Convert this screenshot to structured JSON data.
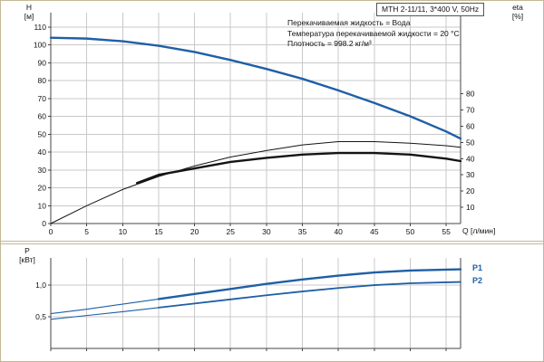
{
  "conditions": [
    "Перекачиваемая жидкость = Вода",
    "Температура перекачиваемой жидкости = 20 °C",
    "Плотность = 998.2 кг/м³"
  ],
  "colors": {
    "blue": "#1f5fa6",
    "black": "#141414",
    "grid": "#c9c9c9",
    "axis": "#444444",
    "frame": "#c3b795",
    "text": "#111111"
  },
  "chart_data": [
    {
      "type": "line",
      "title": "MTH 2-11/11, 3*400 V, 50Hz",
      "xlabel": "Q [л/мин]",
      "ylabel_left": [
        "H",
        "[м]"
      ],
      "ylabel_right": [
        "eta",
        "[%]"
      ],
      "xlim": [
        0,
        57
      ],
      "ylim": [
        0,
        118
      ],
      "ylim_right": [
        0,
        130
      ],
      "x_ticks": [
        0,
        5,
        10,
        15,
        20,
        25,
        30,
        35,
        40,
        45,
        50,
        55
      ],
      "y_ticks": [
        0,
        10,
        20,
        30,
        40,
        50,
        60,
        70,
        80,
        90,
        100,
        110
      ],
      "y_ticks_right": [
        10,
        20,
        30,
        40,
        50,
        60,
        70,
        80
      ],
      "grid": true,
      "series": [
        {
          "name": "head-H",
          "axis": "left",
          "color": "#1f5fa6",
          "width": 2.4,
          "x": [
            0,
            5,
            10,
            15,
            20,
            25,
            30,
            35,
            40,
            45,
            50,
            55,
            57
          ],
          "y": [
            104,
            103.5,
            102,
            99.5,
            96,
            91.5,
            86.5,
            81,
            74.5,
            67.5,
            60,
            51.5,
            47.5
          ]
        },
        {
          "name": "eta-total",
          "axis": "right",
          "color": "#141414",
          "width": 1,
          "x": [
            0,
            5,
            10,
            15,
            20,
            25,
            30,
            35,
            40,
            45,
            50,
            55,
            57
          ],
          "y": [
            0,
            11,
            21,
            29,
            35.5,
            41,
            45,
            48.5,
            50.5,
            50.5,
            49.5,
            48,
            47
          ]
        },
        {
          "name": "eta-pump",
          "axis": "right",
          "color": "#141414",
          "width": 2.4,
          "x": [
            12,
            15,
            20,
            25,
            30,
            35,
            40,
            45,
            50,
            55,
            57
          ],
          "y": [
            25,
            30,
            34,
            38,
            40.5,
            42.5,
            43.5,
            43.5,
            42.5,
            40,
            38.5
          ]
        }
      ]
    },
    {
      "type": "line",
      "ylabel_left": [
        "P",
        "[кВт]"
      ],
      "xlim": [
        0,
        57
      ],
      "ylim": [
        0,
        1.43
      ],
      "x_ticks": [
        0,
        5,
        10,
        15,
        20,
        25,
        30,
        35,
        40,
        45,
        50,
        55
      ],
      "y_ticks": [
        {
          "v": 0.5,
          "label": "0,5"
        },
        {
          "v": 1.0,
          "label": "1,0"
        }
      ],
      "x_tick_labels": false,
      "grid": true,
      "labels": {
        "p1": "P1",
        "p2": "P2"
      },
      "series": [
        {
          "name": "P1",
          "axis": "left",
          "color": "#1f5fa6",
          "width": 1.1,
          "bold_from": 12,
          "width_bold": 2.4,
          "x": [
            0,
            5,
            10,
            15,
            20,
            25,
            30,
            35,
            40,
            45,
            50,
            55,
            57
          ],
          "y": [
            0.55,
            0.62,
            0.7,
            0.78,
            0.86,
            0.94,
            1.02,
            1.09,
            1.15,
            1.2,
            1.23,
            1.245,
            1.25
          ]
        },
        {
          "name": "P2",
          "axis": "left",
          "color": "#1f5fa6",
          "width": 1.1,
          "bold_from": 12,
          "width_bold": 1.8,
          "x": [
            0,
            5,
            10,
            15,
            20,
            25,
            30,
            35,
            40,
            45,
            50,
            55,
            57
          ],
          "y": [
            0.46,
            0.52,
            0.58,
            0.645,
            0.71,
            0.775,
            0.84,
            0.9,
            0.955,
            1.0,
            1.03,
            1.045,
            1.05
          ]
        }
      ]
    }
  ]
}
